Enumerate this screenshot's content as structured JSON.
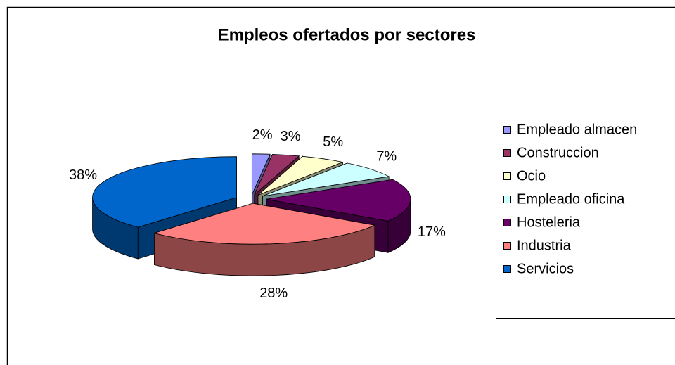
{
  "chart_data": {
    "type": "pie",
    "title": "Empleos ofertados por sectores",
    "categories": [
      "Empleado almacen",
      "Construccion",
      "Ocio",
      "Empleado oficina",
      "Hosteleria",
      "Industria",
      "Servicios"
    ],
    "values": [
      2,
      3,
      5,
      7,
      17,
      28,
      38
    ],
    "value_labels": [
      "2%",
      "3%",
      "5%",
      "7%",
      "17%",
      "28%",
      "38%"
    ],
    "colors": [
      "#9999FF",
      "#993366",
      "#FFFFCC",
      "#CCFFFF",
      "#660066",
      "#FF8080",
      "#0066CC"
    ],
    "legend": "right"
  }
}
